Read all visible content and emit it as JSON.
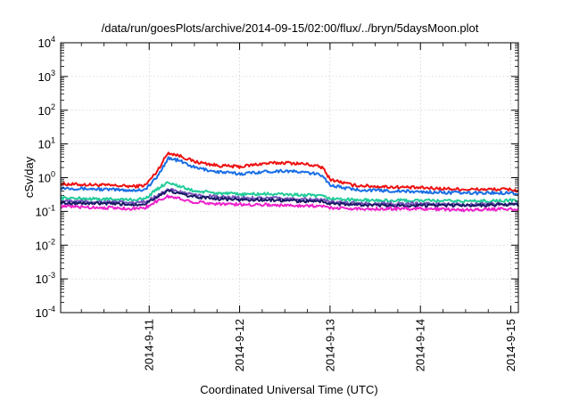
{
  "chart_data": {
    "type": "line",
    "title": "/data/run/goesPlots/archive/2014-09-15/02:00/flux/../bryn/5daysMoon.plot",
    "xlabel": "Coordinated Universal Time (UTC)",
    "ylabel": "cSv/day",
    "yscale": "log",
    "ylim": [
      0.0001,
      10000
    ],
    "y_ticks": [
      {
        "base": "10",
        "exp": "-4"
      },
      {
        "base": "10",
        "exp": "-3"
      },
      {
        "base": "10",
        "exp": "-2"
      },
      {
        "base": "10",
        "exp": "-1"
      },
      {
        "base": "10",
        "exp": "0"
      },
      {
        "base": "10",
        "exp": "1"
      },
      {
        "base": "10",
        "exp": "2"
      },
      {
        "base": "10",
        "exp": "3"
      },
      {
        "base": "10",
        "exp": "4"
      }
    ],
    "xlim": [
      "2014-09-10 00:30",
      "2014-09-15 02:00"
    ],
    "x_ticks": [
      "2014-9-11",
      "2014-9-12",
      "2014-9-13",
      "2014-9-14",
      "2014-9-15"
    ],
    "x_tick_dates": [
      "2014-09-11",
      "2014-09-12",
      "2014-09-13",
      "2014-09-14",
      "2014-09-15"
    ],
    "grid": true,
    "x": [
      "2014-09-10 00:30",
      "2014-09-10 12:00",
      "2014-09-10 20:00",
      "2014-09-10 23:00",
      "2014-09-11 02:00",
      "2014-09-11 05:00",
      "2014-09-11 08:00",
      "2014-09-11 12:00",
      "2014-09-11 18:00",
      "2014-09-12 00:00",
      "2014-09-12 06:00",
      "2014-09-12 12:00",
      "2014-09-12 18:00",
      "2014-09-12 22:00",
      "2014-09-13 00:00",
      "2014-09-13 06:00",
      "2014-09-13 12:00",
      "2014-09-14 00:00",
      "2014-09-14 12:00",
      "2014-09-15 00:00",
      "2014-09-15 02:00"
    ],
    "series": [
      {
        "color": "#ee1111",
        "values": [
          0.65,
          0.6,
          0.55,
          0.6,
          1.5,
          5.5,
          4.5,
          3.0,
          2.3,
          2.1,
          2.6,
          2.8,
          2.5,
          2.0,
          0.9,
          0.6,
          0.55,
          0.5,
          0.45,
          0.45,
          0.4
        ]
      },
      {
        "color": "#1a6ee6",
        "values": [
          0.5,
          0.45,
          0.42,
          0.45,
          1.0,
          3.8,
          3.2,
          2.0,
          1.5,
          1.3,
          1.5,
          1.6,
          1.4,
          1.2,
          0.6,
          0.45,
          0.42,
          0.38,
          0.35,
          0.36,
          0.33
        ]
      },
      {
        "color": "#22cc99",
        "values": [
          0.25,
          0.23,
          0.22,
          0.24,
          0.45,
          0.75,
          0.55,
          0.4,
          0.35,
          0.32,
          0.33,
          0.32,
          0.3,
          0.28,
          0.24,
          0.22,
          0.21,
          0.21,
          0.2,
          0.21,
          0.2
        ]
      },
      {
        "color": "#7755bb",
        "values": [
          0.2,
          0.19,
          0.18,
          0.19,
          0.3,
          0.45,
          0.38,
          0.3,
          0.27,
          0.25,
          0.25,
          0.24,
          0.23,
          0.22,
          0.19,
          0.18,
          0.17,
          0.17,
          0.16,
          0.17,
          0.16
        ]
      },
      {
        "color": "#1a1a66",
        "values": [
          0.18,
          0.17,
          0.16,
          0.17,
          0.27,
          0.4,
          0.34,
          0.27,
          0.24,
          0.22,
          0.22,
          0.21,
          0.2,
          0.2,
          0.17,
          0.16,
          0.15,
          0.15,
          0.15,
          0.16,
          0.15
        ]
      },
      {
        "color": "#ee22cc",
        "values": [
          0.14,
          0.13,
          0.12,
          0.13,
          0.2,
          0.28,
          0.24,
          0.19,
          0.17,
          0.16,
          0.16,
          0.15,
          0.15,
          0.14,
          0.13,
          0.12,
          0.12,
          0.12,
          0.11,
          0.12,
          0.11
        ]
      }
    ]
  }
}
